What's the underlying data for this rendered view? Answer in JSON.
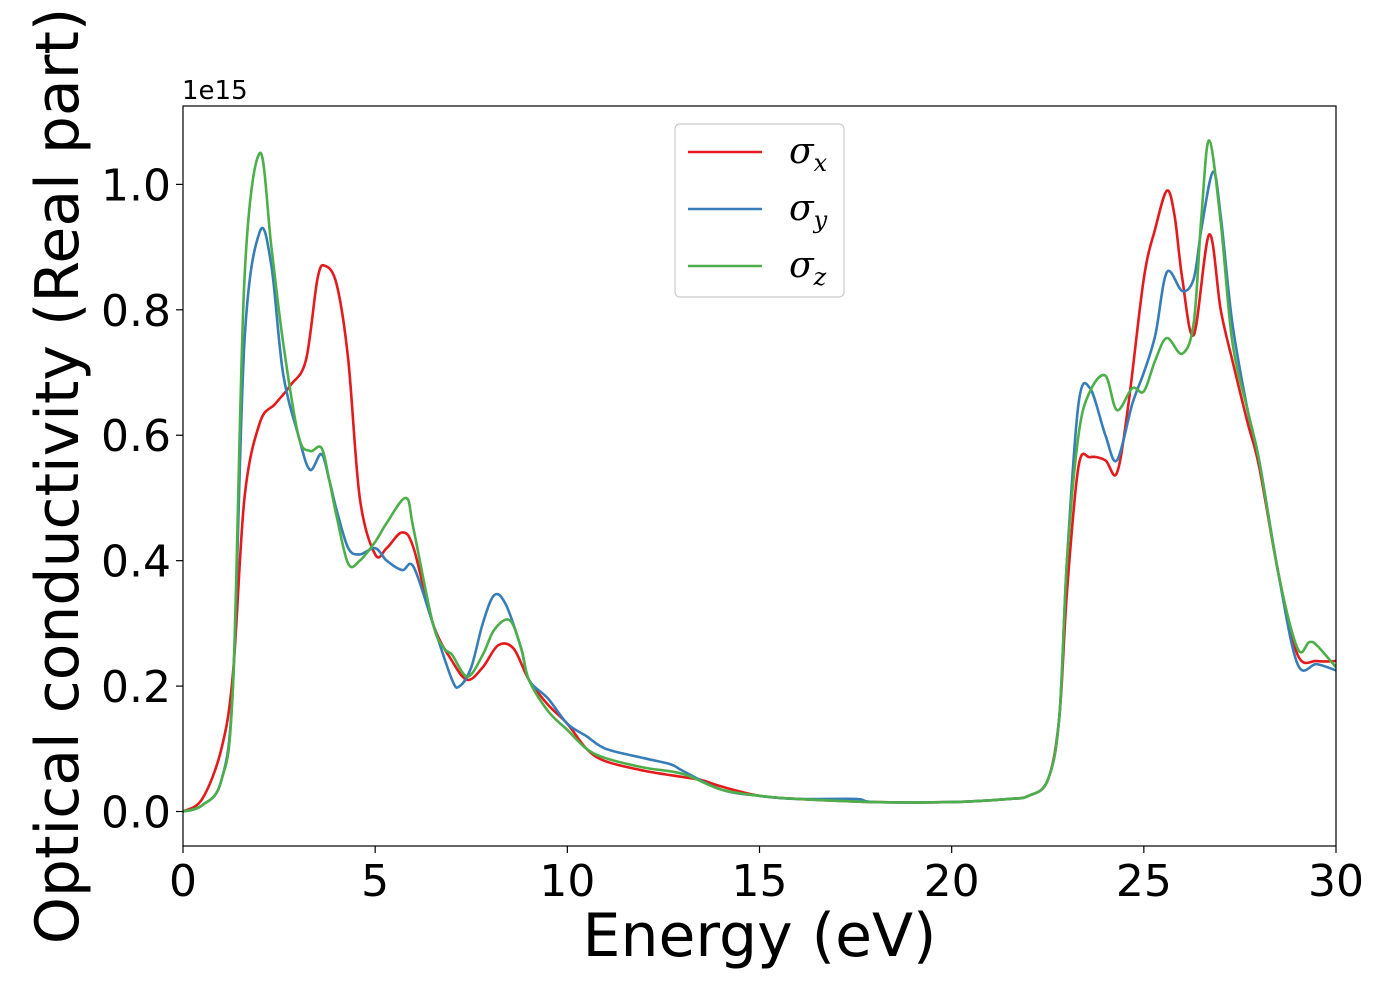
{
  "chart_data": {
    "type": "line",
    "xlabel": "Energy (eV)",
    "ylabel": "Optical conductivity (Real part)",
    "y_offset_label": "1e15",
    "xlim": [
      0,
      30
    ],
    "ylim": [
      -0.055,
      1.125
    ],
    "x_ticks": [
      0,
      5,
      10,
      15,
      20,
      25,
      30
    ],
    "x_tick_labels": [
      "0",
      "5",
      "10",
      "15",
      "20",
      "25",
      "30"
    ],
    "y_ticks": [
      0.0,
      0.2,
      0.4,
      0.6,
      0.8,
      1.0
    ],
    "y_tick_labels": [
      "0.0",
      "0.2",
      "0.4",
      "0.6",
      "0.8",
      "1.0"
    ],
    "grid": false,
    "legend_position": "top-center",
    "series": [
      {
        "name": "σx",
        "symbol": "σ",
        "subscript": "x",
        "color": "#e41a1c",
        "x": [
          0,
          0.5,
          1.0,
          1.3,
          1.6,
          2.0,
          2.4,
          2.8,
          3.2,
          3.5,
          3.7,
          4.0,
          4.3,
          4.6,
          5.0,
          5.3,
          5.7,
          6.0,
          6.5,
          7.0,
          7.4,
          7.8,
          8.2,
          8.6,
          9.0,
          9.5,
          10.0,
          10.5,
          11.0,
          12.0,
          13.0,
          13.5,
          14.0,
          15.0,
          16.0,
          18.0,
          20.0,
          21.5,
          22.0,
          22.5,
          22.8,
          23.0,
          23.3,
          23.6,
          24.0,
          24.3,
          24.6,
          25.0,
          25.3,
          25.6,
          25.8,
          26.0,
          26.3,
          26.7,
          27.0,
          27.3,
          27.7,
          28.0,
          28.5,
          29.0,
          29.5,
          30.0
        ],
        "y": [
          0.0,
          0.02,
          0.1,
          0.22,
          0.5,
          0.62,
          0.65,
          0.68,
          0.72,
          0.85,
          0.87,
          0.84,
          0.72,
          0.5,
          0.41,
          0.42,
          0.445,
          0.42,
          0.3,
          0.24,
          0.21,
          0.23,
          0.265,
          0.26,
          0.21,
          0.17,
          0.14,
          0.1,
          0.08,
          0.065,
          0.055,
          0.05,
          0.04,
          0.025,
          0.02,
          0.015,
          0.015,
          0.02,
          0.025,
          0.05,
          0.15,
          0.35,
          0.55,
          0.565,
          0.56,
          0.54,
          0.65,
          0.85,
          0.93,
          0.99,
          0.95,
          0.85,
          0.76,
          0.92,
          0.8,
          0.72,
          0.62,
          0.55,
          0.38,
          0.25,
          0.24,
          0.24
        ]
      },
      {
        "name": "σy",
        "symbol": "σ",
        "subscript": "y",
        "color": "#377eb8",
        "x": [
          0,
          0.5,
          1.0,
          1.3,
          1.6,
          2.0,
          2.3,
          2.6,
          3.0,
          3.3,
          3.6,
          3.8,
          4.0,
          4.3,
          4.6,
          5.0,
          5.3,
          5.7,
          6.0,
          6.5,
          7.0,
          7.2,
          7.5,
          7.8,
          8.1,
          8.4,
          8.8,
          9.0,
          9.5,
          10.0,
          10.5,
          11.0,
          12.0,
          12.7,
          13.0,
          14.0,
          15.0,
          16.0,
          17.5,
          18.0,
          20.0,
          21.5,
          22.0,
          22.5,
          22.8,
          23.0,
          23.3,
          23.6,
          24.0,
          24.3,
          24.7,
          25.0,
          25.3,
          25.6,
          26.0,
          26.3,
          26.5,
          26.8,
          27.0,
          27.3,
          27.7,
          28.0,
          28.5,
          29.0,
          29.5,
          30.0
        ],
        "y": [
          0.0,
          0.01,
          0.05,
          0.2,
          0.75,
          0.925,
          0.87,
          0.7,
          0.6,
          0.545,
          0.57,
          0.53,
          0.48,
          0.42,
          0.41,
          0.42,
          0.4,
          0.385,
          0.39,
          0.3,
          0.21,
          0.2,
          0.23,
          0.3,
          0.345,
          0.33,
          0.26,
          0.21,
          0.18,
          0.14,
          0.12,
          0.1,
          0.085,
          0.075,
          0.065,
          0.035,
          0.025,
          0.02,
          0.02,
          0.015,
          0.015,
          0.02,
          0.025,
          0.05,
          0.15,
          0.4,
          0.65,
          0.675,
          0.6,
          0.56,
          0.65,
          0.7,
          0.76,
          0.86,
          0.83,
          0.85,
          0.93,
          1.02,
          0.95,
          0.78,
          0.64,
          0.56,
          0.38,
          0.235,
          0.235,
          0.225
        ]
      },
      {
        "name": "σz",
        "symbol": "σ",
        "subscript": "z",
        "color": "#4daf4a",
        "x": [
          0,
          0.5,
          1.0,
          1.3,
          1.6,
          2.0,
          2.3,
          2.6,
          3.0,
          3.3,
          3.6,
          3.8,
          4.0,
          4.3,
          4.6,
          5.0,
          5.3,
          5.8,
          6.0,
          6.5,
          6.8,
          7.0,
          7.4,
          7.8,
          8.1,
          8.5,
          8.8,
          9.0,
          9.5,
          10.0,
          10.5,
          11.0,
          12.0,
          13.0,
          14.0,
          15.0,
          16.0,
          18.0,
          20.0,
          21.5,
          22.0,
          22.5,
          22.8,
          23.0,
          23.3,
          23.6,
          24.0,
          24.3,
          24.7,
          25.0,
          25.3,
          25.6,
          26.0,
          26.3,
          26.5,
          26.7,
          27.0,
          27.3,
          27.7,
          28.0,
          28.5,
          29.0,
          29.3,
          29.5,
          30.0
        ],
        "y": [
          0.0,
          0.01,
          0.05,
          0.2,
          0.85,
          1.05,
          0.9,
          0.75,
          0.6,
          0.575,
          0.58,
          0.53,
          0.47,
          0.395,
          0.4,
          0.43,
          0.46,
          0.5,
          0.45,
          0.3,
          0.26,
          0.25,
          0.215,
          0.25,
          0.29,
          0.305,
          0.26,
          0.21,
          0.16,
          0.13,
          0.1,
          0.085,
          0.07,
          0.06,
          0.035,
          0.025,
          0.02,
          0.015,
          0.015,
          0.02,
          0.025,
          0.05,
          0.15,
          0.4,
          0.6,
          0.67,
          0.695,
          0.64,
          0.675,
          0.67,
          0.72,
          0.755,
          0.73,
          0.78,
          0.95,
          1.07,
          0.94,
          0.75,
          0.64,
          0.56,
          0.38,
          0.26,
          0.27,
          0.265,
          0.23
        ]
      }
    ]
  }
}
